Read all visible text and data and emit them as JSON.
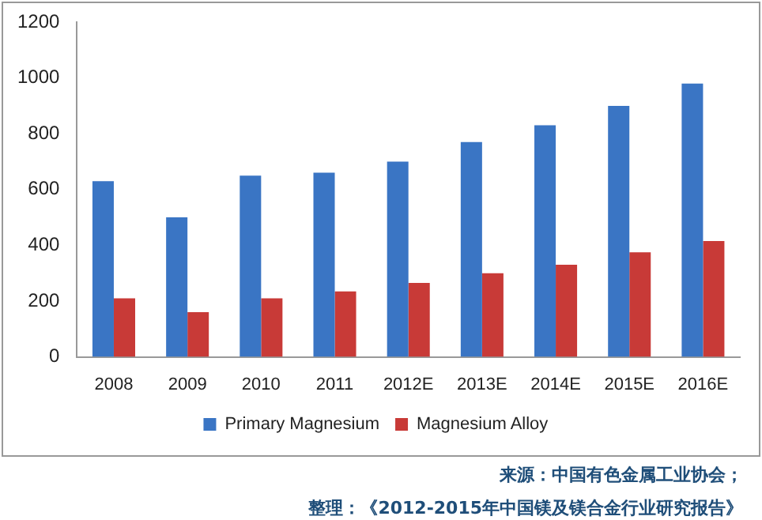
{
  "chart_data": {
    "type": "bar",
    "categories": [
      "2008",
      "2009",
      "2010",
      "2011",
      "2012E",
      "2013E",
      "2014E",
      "2015E",
      "2016E"
    ],
    "series": [
      {
        "name": "Primary Magnesium",
        "color": "#3a75c4",
        "values": [
          630,
          500,
          650,
          660,
          700,
          770,
          830,
          900,
          980
        ]
      },
      {
        "name": "Magnesium Alloy",
        "color": "#c83a37",
        "values": [
          210,
          160,
          210,
          235,
          265,
          300,
          330,
          375,
          415
        ]
      }
    ],
    "ylim": [
      0,
      1200
    ],
    "yticks": [
      0,
      200,
      400,
      600,
      800,
      1000,
      1200
    ],
    "grid": false,
    "legend": "bottom",
    "annotations": [
      "来源：中国有色金属工业协会；",
      "整理：《2012-2015年中国镁及镁合金行业研究报告》"
    ]
  }
}
